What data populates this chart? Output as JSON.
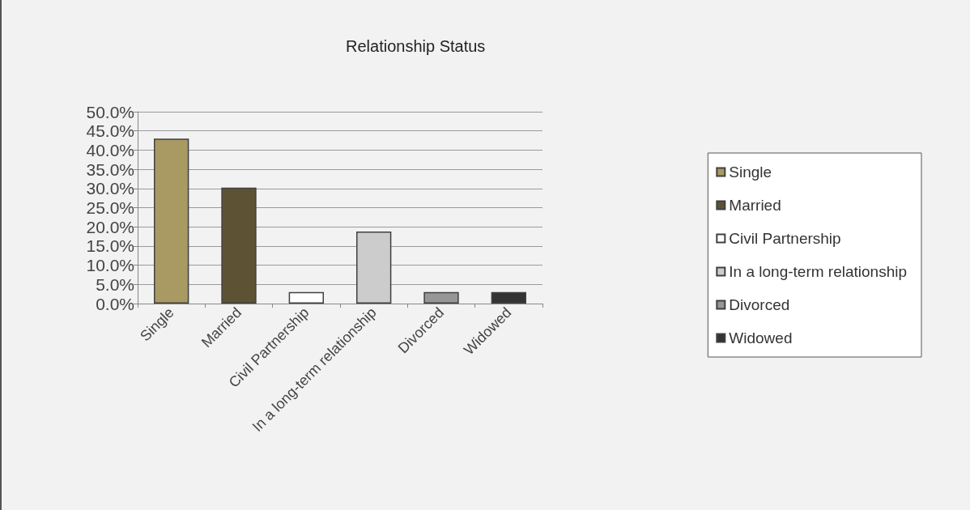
{
  "chart_data": {
    "type": "bar",
    "title": "Relationship Status",
    "categories": [
      "Single",
      "Married",
      "Civil Partnership",
      "In a long-term relationship",
      "Divorced",
      "Widowed"
    ],
    "series": [
      {
        "name": "Single",
        "color": "#a89a62",
        "values": [
          43.0,
          null,
          null,
          null,
          null,
          null
        ]
      },
      {
        "name": "Married",
        "color": "#5e5235",
        "values": [
          null,
          30.2,
          null,
          null,
          null,
          null
        ]
      },
      {
        "name": "Civil Partnership",
        "color": "#ffffff",
        "values": [
          null,
          null,
          3.0,
          null,
          null,
          null
        ]
      },
      {
        "name": "In a long-term relationship",
        "color": "#cccccc",
        "values": [
          null,
          null,
          null,
          18.8,
          null,
          null
        ]
      },
      {
        "name": "Divorced",
        "color": "#969696",
        "values": [
          null,
          null,
          null,
          null,
          3.0,
          null
        ]
      },
      {
        "name": "Widowed",
        "color": "#333333",
        "values": [
          null,
          null,
          null,
          null,
          null,
          3.0
        ]
      }
    ],
    "stacked": true,
    "ylim": [
      0,
      50
    ],
    "yticks": [
      {
        "value": 0,
        "label": "0.0%"
      },
      {
        "value": 5,
        "label": "5.0%"
      },
      {
        "value": 10,
        "label": "10.0%"
      },
      {
        "value": 15,
        "label": "15.0%"
      },
      {
        "value": 20,
        "label": "20.0%"
      },
      {
        "value": 25,
        "label": "25.0%"
      },
      {
        "value": 30,
        "label": "30.0%"
      },
      {
        "value": 35,
        "label": "35.0%"
      },
      {
        "value": 40,
        "label": "40.0%"
      },
      {
        "value": 45,
        "label": "45.0%"
      },
      {
        "value": 50,
        "label": "50.0%"
      }
    ],
    "grid": "y",
    "legend": "right"
  }
}
